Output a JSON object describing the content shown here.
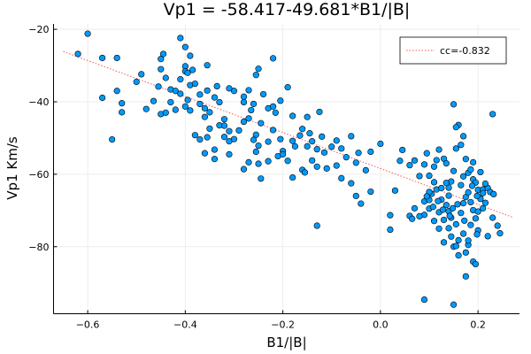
{
  "chart_data": {
    "type": "scatter",
    "title": "Vp1 = -58.417-49.681*B1/|B|",
    "xlabel": "B1/|B|",
    "ylabel": "Vp1 Km/s",
    "xlim": [
      -0.67,
      0.285
    ],
    "ylim": [
      -98.5,
      -18.5
    ],
    "xticks": [
      -0.6,
      -0.4,
      -0.2,
      0.0,
      0.2
    ],
    "xtick_labels": [
      "−0.6",
      "−0.4",
      "−0.2",
      "0.0",
      "0.2"
    ],
    "yticks": [
      -80,
      -60,
      -40,
      -20
    ],
    "ytick_labels": [
      "−80",
      "−60",
      "−40",
      "−20"
    ],
    "grid": true,
    "legend_position": "top-right",
    "colors": {
      "points": "#009AFA",
      "fit_line": "#F0595A",
      "axis": "#000000",
      "grid": "#EDEDED"
    },
    "series": [
      {
        "name": "",
        "kind": "scatter",
        "points": [
          [
            -0.6,
            -21.2
          ],
          [
            -0.62,
            -26.8
          ],
          [
            -0.57,
            -27.9
          ],
          [
            -0.54,
            -27.9
          ],
          [
            -0.57,
            -38.9
          ],
          [
            -0.54,
            -37.0
          ],
          [
            -0.53,
            -40.4
          ],
          [
            -0.53,
            -42.9
          ],
          [
            -0.55,
            -50.4
          ],
          [
            -0.5,
            -34.5
          ],
          [
            -0.49,
            -32.4
          ],
          [
            -0.48,
            -42.0
          ],
          [
            -0.465,
            -39.8
          ],
          [
            -0.455,
            -35.8
          ],
          [
            -0.445,
            -26.8
          ],
          [
            -0.45,
            -28.2
          ],
          [
            -0.45,
            -31.0
          ],
          [
            -0.44,
            -33.4
          ],
          [
            -0.43,
            -36.6
          ],
          [
            -0.42,
            -37.0
          ],
          [
            -0.41,
            -37.8
          ],
          [
            -0.4,
            -30.2
          ],
          [
            -0.4,
            -31.6
          ],
          [
            -0.43,
            -40.1
          ],
          [
            -0.45,
            -43.4
          ],
          [
            -0.44,
            -43.0
          ],
          [
            -0.42,
            -42.2
          ],
          [
            -0.41,
            -22.4
          ],
          [
            -0.4,
            -24.9
          ],
          [
            -0.39,
            -27.3
          ],
          [
            -0.395,
            -32.0
          ],
          [
            -0.41,
            -33.8
          ],
          [
            -0.385,
            -31.2
          ],
          [
            -0.39,
            -35.4
          ],
          [
            -0.38,
            -35.0
          ],
          [
            -0.37,
            -38.0
          ],
          [
            -0.395,
            -39.5
          ],
          [
            -0.4,
            -41.3
          ],
          [
            -0.37,
            -40.6
          ],
          [
            -0.39,
            -42.4
          ],
          [
            -0.355,
            -29.9
          ],
          [
            -0.355,
            -36.9
          ],
          [
            -0.36,
            -41.8
          ],
          [
            -0.36,
            -44.2
          ],
          [
            -0.35,
            -42.9
          ],
          [
            -0.34,
            -38.8
          ],
          [
            -0.33,
            -40.1
          ],
          [
            -0.31,
            -36.3
          ],
          [
            -0.3,
            -37.0
          ],
          [
            -0.32,
            -44.8
          ],
          [
            -0.33,
            -46.5
          ],
          [
            -0.31,
            -48.1
          ],
          [
            -0.335,
            -35.7
          ],
          [
            -0.38,
            -49.2
          ],
          [
            -0.37,
            -50.4
          ],
          [
            -0.355,
            -49.8
          ],
          [
            -0.35,
            -47.4
          ],
          [
            -0.34,
            -53.2
          ],
          [
            -0.32,
            -49.7
          ],
          [
            -0.31,
            -50.9
          ],
          [
            -0.3,
            -50.3
          ],
          [
            -0.36,
            -54.2
          ],
          [
            -0.34,
            -55.8
          ],
          [
            -0.31,
            -54.5
          ],
          [
            -0.29,
            -47.9
          ],
          [
            -0.28,
            -45.5
          ],
          [
            -0.265,
            -42.3
          ],
          [
            -0.26,
            -40.6
          ],
          [
            -0.28,
            -40.1
          ],
          [
            -0.255,
            -32.6
          ],
          [
            -0.24,
            -37.9
          ],
          [
            -0.27,
            -36.8
          ],
          [
            -0.28,
            -38.6
          ],
          [
            -0.27,
            -44.6
          ],
          [
            -0.245,
            -45.9
          ],
          [
            -0.23,
            -41.8
          ],
          [
            -0.22,
            -41.3
          ],
          [
            -0.215,
            -43.0
          ],
          [
            -0.205,
            -39.7
          ],
          [
            -0.19,
            -36.0
          ],
          [
            -0.18,
            -43.9
          ],
          [
            -0.22,
            -47.8
          ],
          [
            -0.255,
            -49.1
          ],
          [
            -0.25,
            -52.1
          ],
          [
            -0.23,
            -51.0
          ],
          [
            -0.205,
            -50.3
          ],
          [
            -0.2,
            -53.6
          ],
          [
            -0.18,
            -50.8
          ],
          [
            -0.175,
            -52.3
          ],
          [
            -0.165,
            -49.3
          ],
          [
            -0.16,
            -47.5
          ],
          [
            -0.15,
            -44.2
          ],
          [
            -0.145,
            -48.7
          ],
          [
            -0.14,
            -50.9
          ],
          [
            -0.13,
            -53.1
          ],
          [
            -0.125,
            -42.8
          ],
          [
            -0.12,
            -49.6
          ],
          [
            -0.115,
            -54.0
          ],
          [
            -0.1,
            -52.4
          ],
          [
            -0.09,
            -50.7
          ],
          [
            -0.08,
            -52.9
          ],
          [
            -0.07,
            -55.3
          ],
          [
            -0.06,
            -49.5
          ],
          [
            -0.05,
            -56.8
          ],
          [
            -0.045,
            -54.1
          ],
          [
            -0.03,
            -58.9
          ],
          [
            -0.02,
            -53.8
          ],
          [
            -0.28,
            -58.6
          ],
          [
            -0.27,
            -56.7
          ],
          [
            -0.255,
            -53.8
          ],
          [
            -0.25,
            -57.1
          ],
          [
            -0.245,
            -61.2
          ],
          [
            -0.23,
            -56.4
          ],
          [
            -0.21,
            -55.0
          ],
          [
            -0.19,
            -56.3
          ],
          [
            -0.18,
            -60.9
          ],
          [
            -0.16,
            -58.8
          ],
          [
            -0.155,
            -59.5
          ],
          [
            -0.14,
            -56.2
          ],
          [
            -0.13,
            -57.9
          ],
          [
            -0.11,
            -58.4
          ],
          [
            -0.09,
            -57.6
          ],
          [
            -0.08,
            -61.1
          ],
          [
            -0.06,
            -62.5
          ],
          [
            -0.05,
            -66.0
          ],
          [
            -0.04,
            -68.1
          ],
          [
            -0.02,
            -64.8
          ],
          [
            -0.13,
            -74.2
          ],
          [
            -0.22,
            -28.0
          ],
          [
            -0.25,
            -30.9
          ],
          [
            -0.32,
            -46.6
          ],
          [
            -0.26,
            -50.5
          ],
          [
            -0.15,
            -52.3
          ],
          [
            -0.2,
            -54.5
          ],
          [
            0.0,
            -51.6
          ],
          [
            0.04,
            -56.3
          ],
          [
            0.045,
            -53.3
          ],
          [
            0.06,
            -57.5
          ],
          [
            0.07,
            -56.2
          ],
          [
            0.08,
            -60.5
          ],
          [
            0.09,
            -57.3
          ],
          [
            0.095,
            -54.2
          ],
          [
            0.1,
            -60.4
          ],
          [
            0.11,
            -57.9
          ],
          [
            0.115,
            -56.1
          ],
          [
            0.12,
            -53.2
          ],
          [
            0.13,
            -55.7
          ],
          [
            0.135,
            -57.0
          ],
          [
            0.14,
            -63.7
          ],
          [
            0.145,
            -62.0
          ],
          [
            0.15,
            -59.1
          ],
          [
            0.155,
            -52.9
          ],
          [
            0.16,
            -46.4
          ],
          [
            0.165,
            -51.9
          ],
          [
            0.17,
            -49.5
          ],
          [
            0.175,
            -55.8
          ],
          [
            0.18,
            -59.6
          ],
          [
            0.185,
            -58.7
          ],
          [
            0.19,
            -61.4
          ],
          [
            0.195,
            -62.3
          ],
          [
            0.2,
            -64.3
          ],
          [
            0.205,
            -59.4
          ],
          [
            0.21,
            -64.2
          ],
          [
            0.22,
            -63.8
          ],
          [
            0.225,
            -64.9
          ],
          [
            0.23,
            -43.4
          ],
          [
            0.15,
            -40.7
          ],
          [
            0.155,
            -47.0
          ],
          [
            0.19,
            -56.7
          ],
          [
            0.21,
            -69.4
          ],
          [
            0.23,
            -72.0
          ],
          [
            0.24,
            -74.2
          ],
          [
            0.245,
            -76.3
          ],
          [
            0.22,
            -77.1
          ],
          [
            0.2,
            -75.5
          ],
          [
            0.18,
            -79.5
          ],
          [
            0.17,
            -76.4
          ],
          [
            0.16,
            -78.2
          ],
          [
            0.15,
            -80.0
          ],
          [
            0.13,
            -78.8
          ],
          [
            0.12,
            -75.0
          ],
          [
            0.11,
            -72.9
          ],
          [
            0.1,
            -69.5
          ],
          [
            0.09,
            -67.5
          ],
          [
            0.09,
            -71.2
          ],
          [
            0.08,
            -71.6
          ],
          [
            0.07,
            -69.4
          ],
          [
            0.06,
            -71.5
          ],
          [
            0.065,
            -72.3
          ],
          [
            0.02,
            -75.3
          ],
          [
            0.02,
            -71.3
          ],
          [
            0.03,
            -64.5
          ],
          [
            0.1,
            -67.1
          ],
          [
            0.105,
            -65.4
          ],
          [
            0.115,
            -64.2
          ],
          [
            0.125,
            -67.0
          ],
          [
            0.135,
            -68.5
          ],
          [
            0.14,
            -70.2
          ],
          [
            0.145,
            -72.0
          ],
          [
            0.155,
            -73.8
          ],
          [
            0.165,
            -70.7
          ],
          [
            0.17,
            -68.0
          ],
          [
            0.175,
            -66.3
          ],
          [
            0.18,
            -65.0
          ],
          [
            0.185,
            -67.7
          ],
          [
            0.19,
            -69.9
          ],
          [
            0.195,
            -72.2
          ],
          [
            0.2,
            -70.3
          ],
          [
            0.205,
            -66.8
          ],
          [
            0.21,
            -65.2
          ],
          [
            0.12,
            -70.5
          ],
          [
            0.13,
            -72.6
          ],
          [
            0.14,
            -74.9
          ],
          [
            0.145,
            -77.2
          ],
          [
            0.155,
            -79.8
          ],
          [
            0.175,
            -81.6
          ],
          [
            0.18,
            -78.3
          ],
          [
            0.185,
            -74.0
          ],
          [
            0.19,
            -84.1
          ],
          [
            0.195,
            -84.8
          ],
          [
            0.16,
            -82.4
          ],
          [
            0.175,
            -88.2
          ],
          [
            0.09,
            -94.6
          ],
          [
            0.15,
            -96.0
          ],
          [
            0.14,
            -65.9
          ],
          [
            0.135,
            -62.4
          ],
          [
            0.125,
            -63.8
          ],
          [
            0.11,
            -62.2
          ],
          [
            0.1,
            -64.9
          ],
          [
            0.095,
            -66.1
          ],
          [
            0.165,
            -63.0
          ],
          [
            0.17,
            -60.6
          ],
          [
            0.158,
            -68.3
          ],
          [
            0.148,
            -69.4
          ],
          [
            0.142,
            -71.5
          ],
          [
            0.188,
            -63.2
          ],
          [
            0.198,
            -66.0
          ],
          [
            0.215,
            -67.9
          ],
          [
            0.172,
            -72.8
          ],
          [
            0.128,
            -69.8
          ],
          [
            0.118,
            -67.4
          ],
          [
            0.108,
            -69.0
          ],
          [
            0.198,
            -76.6
          ],
          [
            0.215,
            -62.6
          ],
          [
            0.232,
            -65.5
          ]
        ]
      },
      {
        "name": "cc=-0.832",
        "kind": "line",
        "style": "dotted",
        "intercept": -58.417,
        "slope": -49.681,
        "x_range": [
          -0.65,
          0.27
        ]
      }
    ]
  }
}
